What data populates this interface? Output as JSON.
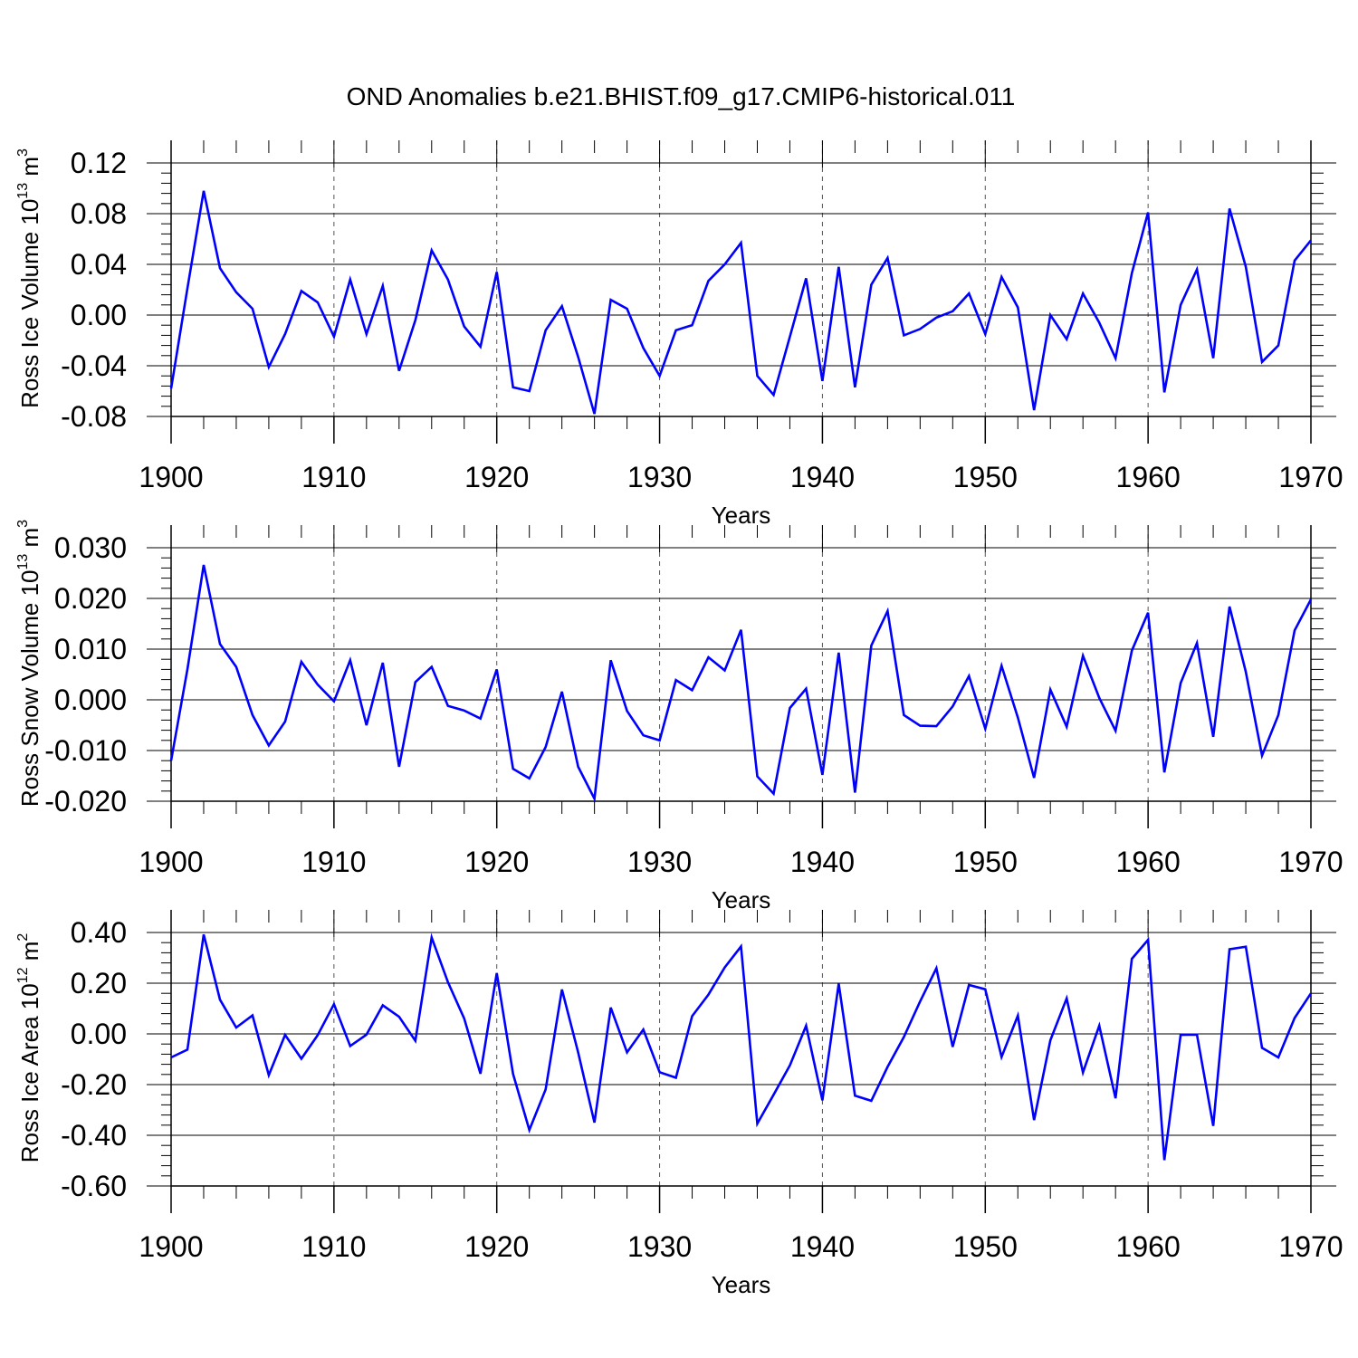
{
  "figure_title": "OND Anomalies b.e21.BHIST.f09_g17.CMIP6-historical.011",
  "line_color": "#0000ff",
  "chart_data": [
    {
      "type": "line",
      "title": "",
      "xlabel": "Years",
      "ylabel": "Ross Ice Volume 10",
      "ylabel_exp": "13",
      "ylabel_unit": " m",
      "ylabel_unit_exp": "3",
      "xlim": [
        1900,
        1970
      ],
      "ylim": [
        -0.09,
        0.12
      ],
      "x_ticks": [
        1900,
        1910,
        1920,
        1930,
        1940,
        1950,
        1960,
        1970
      ],
      "x_tick_labels": [
        "1900",
        "1910",
        "1920",
        "1930",
        "1940",
        "1950",
        "1960",
        "1970"
      ],
      "y_ticks": [
        -0.08,
        -0.04,
        0.0,
        0.04,
        0.08,
        0.12
      ],
      "y_tick_labels": [
        "-0.08",
        "-0.04",
        "0.00",
        "0.04",
        "0.08",
        "0.12"
      ],
      "grid": "vertical dashed at labeled years",
      "series": [
        {
          "name": "Ross Ice Volume",
          "x": [
            1900,
            1901,
            1902,
            1903,
            1904,
            1905,
            1906,
            1907,
            1908,
            1909,
            1910,
            1911,
            1912,
            1913,
            1914,
            1915,
            1916,
            1917,
            1918,
            1919,
            1920,
            1921,
            1922,
            1923,
            1924,
            1925,
            1926,
            1927,
            1928,
            1929,
            1930,
            1931,
            1932,
            1933,
            1934,
            1935,
            1936,
            1937,
            1938,
            1939,
            1940,
            1941,
            1942,
            1943,
            1944,
            1945,
            1946,
            1947,
            1948,
            1949,
            1950,
            1951,
            1952,
            1953,
            1954,
            1955,
            1956,
            1957,
            1958,
            1959,
            1960,
            1961,
            1962,
            1963,
            1964,
            1965,
            1966,
            1967,
            1968,
            1969,
            1970
          ],
          "values": [
            -0.058,
            0.021,
            0.098,
            0.037,
            0.018,
            0.005,
            -0.041,
            -0.015,
            0.019,
            0.01,
            -0.017,
            0.028,
            -0.015,
            0.023,
            -0.044,
            -0.004,
            0.051,
            0.028,
            -0.009,
            -0.025,
            0.034,
            -0.057,
            -0.06,
            -0.012,
            0.007,
            -0.033,
            -0.078,
            0.012,
            0.005,
            -0.026,
            -0.048,
            -0.012,
            -0.008,
            0.027,
            0.04,
            0.057,
            -0.048,
            -0.063,
            -0.017,
            0.029,
            -0.052,
            0.038,
            -0.057,
            0.024,
            0.045,
            -0.016,
            -0.011,
            -0.002,
            0.003,
            0.017,
            -0.015,
            0.03,
            0.006,
            -0.075,
            0.0,
            -0.019,
            0.017,
            -0.006,
            -0.034,
            0.033,
            0.081,
            -0.061,
            0.008,
            0.036,
            -0.034,
            0.084,
            0.038,
            -0.037,
            -0.024,
            0.043,
            0.059
          ]
        }
      ]
    },
    {
      "type": "line",
      "title": "",
      "xlabel": "Years",
      "ylabel": "Ross Snow Volume 10",
      "ylabel_exp": "13",
      "ylabel_unit": " m",
      "ylabel_unit_exp": "3",
      "xlim": [
        1900,
        1970
      ],
      "ylim": [
        -0.02,
        0.03
      ],
      "x_ticks": [
        1900,
        1910,
        1920,
        1930,
        1940,
        1950,
        1960,
        1970
      ],
      "x_tick_labels": [
        "1900",
        "1910",
        "1920",
        "1930",
        "1940",
        "1950",
        "1960",
        "1970"
      ],
      "y_ticks": [
        -0.02,
        -0.01,
        0.0,
        0.01,
        0.02,
        0.03
      ],
      "y_tick_labels": [
        "-0.020",
        "-0.010",
        "0.000",
        "0.010",
        "0.020",
        "0.030"
      ],
      "grid": "vertical dashed at labeled years",
      "series": [
        {
          "name": "Ross Snow Volume",
          "x": [
            1900,
            1901,
            1902,
            1903,
            1904,
            1905,
            1906,
            1907,
            1908,
            1909,
            1910,
            1911,
            1912,
            1913,
            1914,
            1915,
            1916,
            1917,
            1918,
            1919,
            1920,
            1921,
            1922,
            1923,
            1924,
            1925,
            1926,
            1927,
            1928,
            1929,
            1930,
            1931,
            1932,
            1933,
            1934,
            1935,
            1936,
            1937,
            1938,
            1939,
            1940,
            1941,
            1942,
            1943,
            1944,
            1945,
            1946,
            1947,
            1948,
            1949,
            1950,
            1951,
            1952,
            1953,
            1954,
            1955,
            1956,
            1957,
            1958,
            1959,
            1960,
            1961,
            1962,
            1963,
            1964,
            1965,
            1966,
            1967,
            1968,
            1969,
            1970
          ],
          "values": [
            -0.012,
            0.006,
            0.0266,
            0.011,
            0.0065,
            -0.003,
            -0.009,
            -0.0043,
            0.0075,
            0.003,
            -0.0003,
            0.0078,
            -0.005,
            0.0073,
            -0.0132,
            0.0035,
            0.0065,
            -0.0012,
            -0.0021,
            -0.0037,
            0.006,
            -0.0136,
            -0.0155,
            -0.0093,
            0.0016,
            -0.0132,
            -0.0195,
            0.0078,
            -0.0022,
            -0.007,
            -0.008,
            0.0039,
            0.0019,
            0.0084,
            0.0058,
            0.0138,
            -0.0151,
            -0.0185,
            -0.0016,
            0.0022,
            -0.0148,
            0.0093,
            -0.0183,
            0.0107,
            0.0175,
            -0.003,
            -0.0051,
            -0.0052,
            -0.0013,
            0.0047,
            -0.0057,
            0.0067,
            -0.0035,
            -0.0154,
            0.002,
            -0.0053,
            0.0087,
            0.0004,
            -0.0061,
            0.0097,
            0.0172,
            -0.0143,
            0.0033,
            0.0112,
            -0.0073,
            0.0184,
            0.0055,
            -0.011,
            -0.003,
            0.0137,
            0.0198
          ]
        }
      ]
    },
    {
      "type": "line",
      "title": "",
      "xlabel": "Years",
      "ylabel": "Ross Ice Area 10",
      "ylabel_exp": "12",
      "ylabel_unit": " m",
      "ylabel_unit_exp": "2",
      "xlim": [
        1900,
        1970
      ],
      "ylim": [
        -0.6,
        0.4
      ],
      "x_ticks": [
        1900,
        1910,
        1920,
        1930,
        1940,
        1950,
        1960,
        1970
      ],
      "x_tick_labels": [
        "1900",
        "1910",
        "1920",
        "1930",
        "1940",
        "1950",
        "1960",
        "1970"
      ],
      "y_ticks": [
        -0.6,
        -0.4,
        -0.2,
        0.0,
        0.2,
        0.4
      ],
      "y_tick_labels": [
        "-0.60",
        "-0.40",
        "-0.20",
        "0.00",
        "0.20",
        "0.40"
      ],
      "grid": "vertical dashed at labeled years",
      "series": [
        {
          "name": "Ross Ice Area",
          "x": [
            1900,
            1901,
            1902,
            1903,
            1904,
            1905,
            1906,
            1907,
            1908,
            1909,
            1910,
            1911,
            1912,
            1913,
            1914,
            1915,
            1916,
            1917,
            1918,
            1919,
            1920,
            1921,
            1922,
            1923,
            1924,
            1925,
            1926,
            1927,
            1928,
            1929,
            1930,
            1931,
            1932,
            1933,
            1934,
            1935,
            1936,
            1937,
            1938,
            1939,
            1940,
            1941,
            1942,
            1943,
            1944,
            1945,
            1946,
            1947,
            1948,
            1949,
            1950,
            1951,
            1952,
            1953,
            1954,
            1955,
            1956,
            1957,
            1958,
            1959,
            1960,
            1961,
            1962,
            1963,
            1964,
            1965,
            1966,
            1967,
            1968,
            1969,
            1970
          ],
          "values": [
            -0.093,
            -0.062,
            0.392,
            0.135,
            0.025,
            0.073,
            -0.163,
            -0.004,
            -0.098,
            -0.005,
            0.117,
            -0.048,
            -0.003,
            0.113,
            0.068,
            -0.027,
            0.38,
            0.204,
            0.061,
            -0.157,
            0.24,
            -0.158,
            -0.379,
            -0.219,
            0.175,
            -0.073,
            -0.35,
            0.104,
            -0.073,
            0.017,
            -0.151,
            -0.173,
            0.07,
            0.155,
            0.262,
            0.345,
            -0.354,
            -0.24,
            -0.124,
            0.032,
            -0.262,
            0.198,
            -0.244,
            -0.264,
            -0.13,
            -0.012,
            0.128,
            0.259,
            -0.051,
            0.193,
            0.176,
            -0.091,
            0.072,
            -0.34,
            -0.025,
            0.14,
            -0.152,
            0.032,
            -0.254,
            0.296,
            0.371,
            -0.498,
            -0.004,
            -0.003,
            -0.363,
            0.334,
            0.344,
            -0.055,
            -0.093,
            0.063,
            0.16
          ]
        }
      ]
    }
  ]
}
